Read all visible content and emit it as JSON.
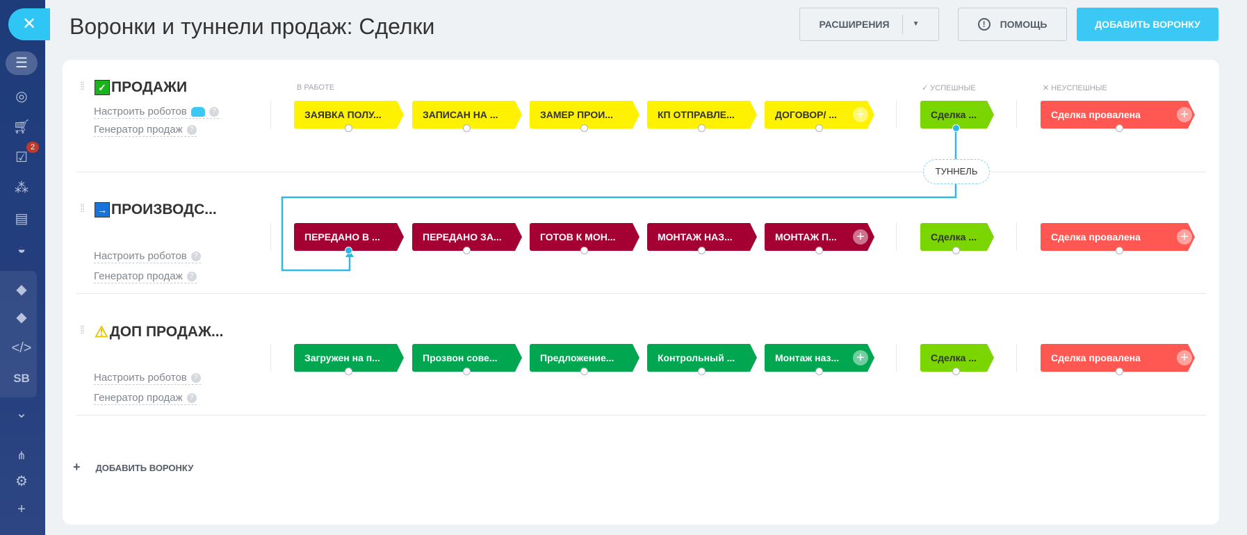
{
  "sidebar": {
    "badge_count": "2",
    "items": [
      "funnel-icon",
      "target-icon",
      "cart-icon",
      "tasks-icon",
      "sites-icon",
      "contacts-icon",
      "robot-icon",
      "box-icon",
      "box-icon",
      "code-icon",
      "SB",
      "chevron-down-icon",
      "network-icon",
      "gear-icon",
      "plus-icon"
    ]
  },
  "header": {
    "title": "Воронки и туннели продаж: Сделки",
    "extensions": "РАСШИРЕНИЯ",
    "help": "ПОМОЩЬ",
    "add_funnel": "ДОБАВИТЬ ВОРОНКУ"
  },
  "columns": {
    "in_work": "В РАБОТЕ",
    "success": "УСПЕШНЫЕ",
    "fail": "НЕУСПЕШНЫЕ"
  },
  "tunnel_label": "ТУННЕЛЬ",
  "funnels": [
    {
      "name": "ПРОДАЖИ",
      "icon": "check-icon",
      "robots": "Настроить роботов",
      "generator": "Генератор продаж",
      "color": "#fff200",
      "text_color": "#333333",
      "stages": [
        "ЗАЯВКА ПОЛУ...",
        "ЗАПИСАН НА ...",
        "ЗАМЕР ПРОИ...",
        "КП ОТПРАВЛЕ...",
        "ДОГОВОР/ ..."
      ],
      "success": "Сделка ...",
      "fail": "Сделка провалена"
    },
    {
      "name": "ПРОИЗВОДС...",
      "icon": "arrow-right-icon",
      "robots": "Настроить роботов",
      "generator": "Генератор продаж",
      "color": "#a50034",
      "text_color": "#ffffff",
      "stages": [
        "ПЕРЕДАНО В ...",
        "ПЕРЕДАНО ЗА...",
        "ГОТОВ К МОН...",
        "МОНТАЖ НАЗ...",
        "МОНТАЖ П..."
      ],
      "success": "Сделка ...",
      "fail": "Сделка провалена"
    },
    {
      "name": "ДОП ПРОДАЖ...",
      "icon": "warning-icon",
      "robots": "Настроить роботов",
      "generator": "Генератор продаж",
      "color": "#00a650",
      "text_color": "#ffffff",
      "stages": [
        "Загружен на п...",
        "Прозвон сове...",
        "Предложение...",
        "Контрольный ...",
        "Монтаж наз..."
      ],
      "success": "Сделка ...",
      "fail": "Сделка провалена"
    }
  ],
  "colors": {
    "success": "#7bd500",
    "fail": "#ff5752",
    "tunnel_line": "#2fb7e8",
    "accent": "#3bc8f5"
  },
  "add_funnel_link": "ДОБАВИТЬ ВОРОНКУ"
}
